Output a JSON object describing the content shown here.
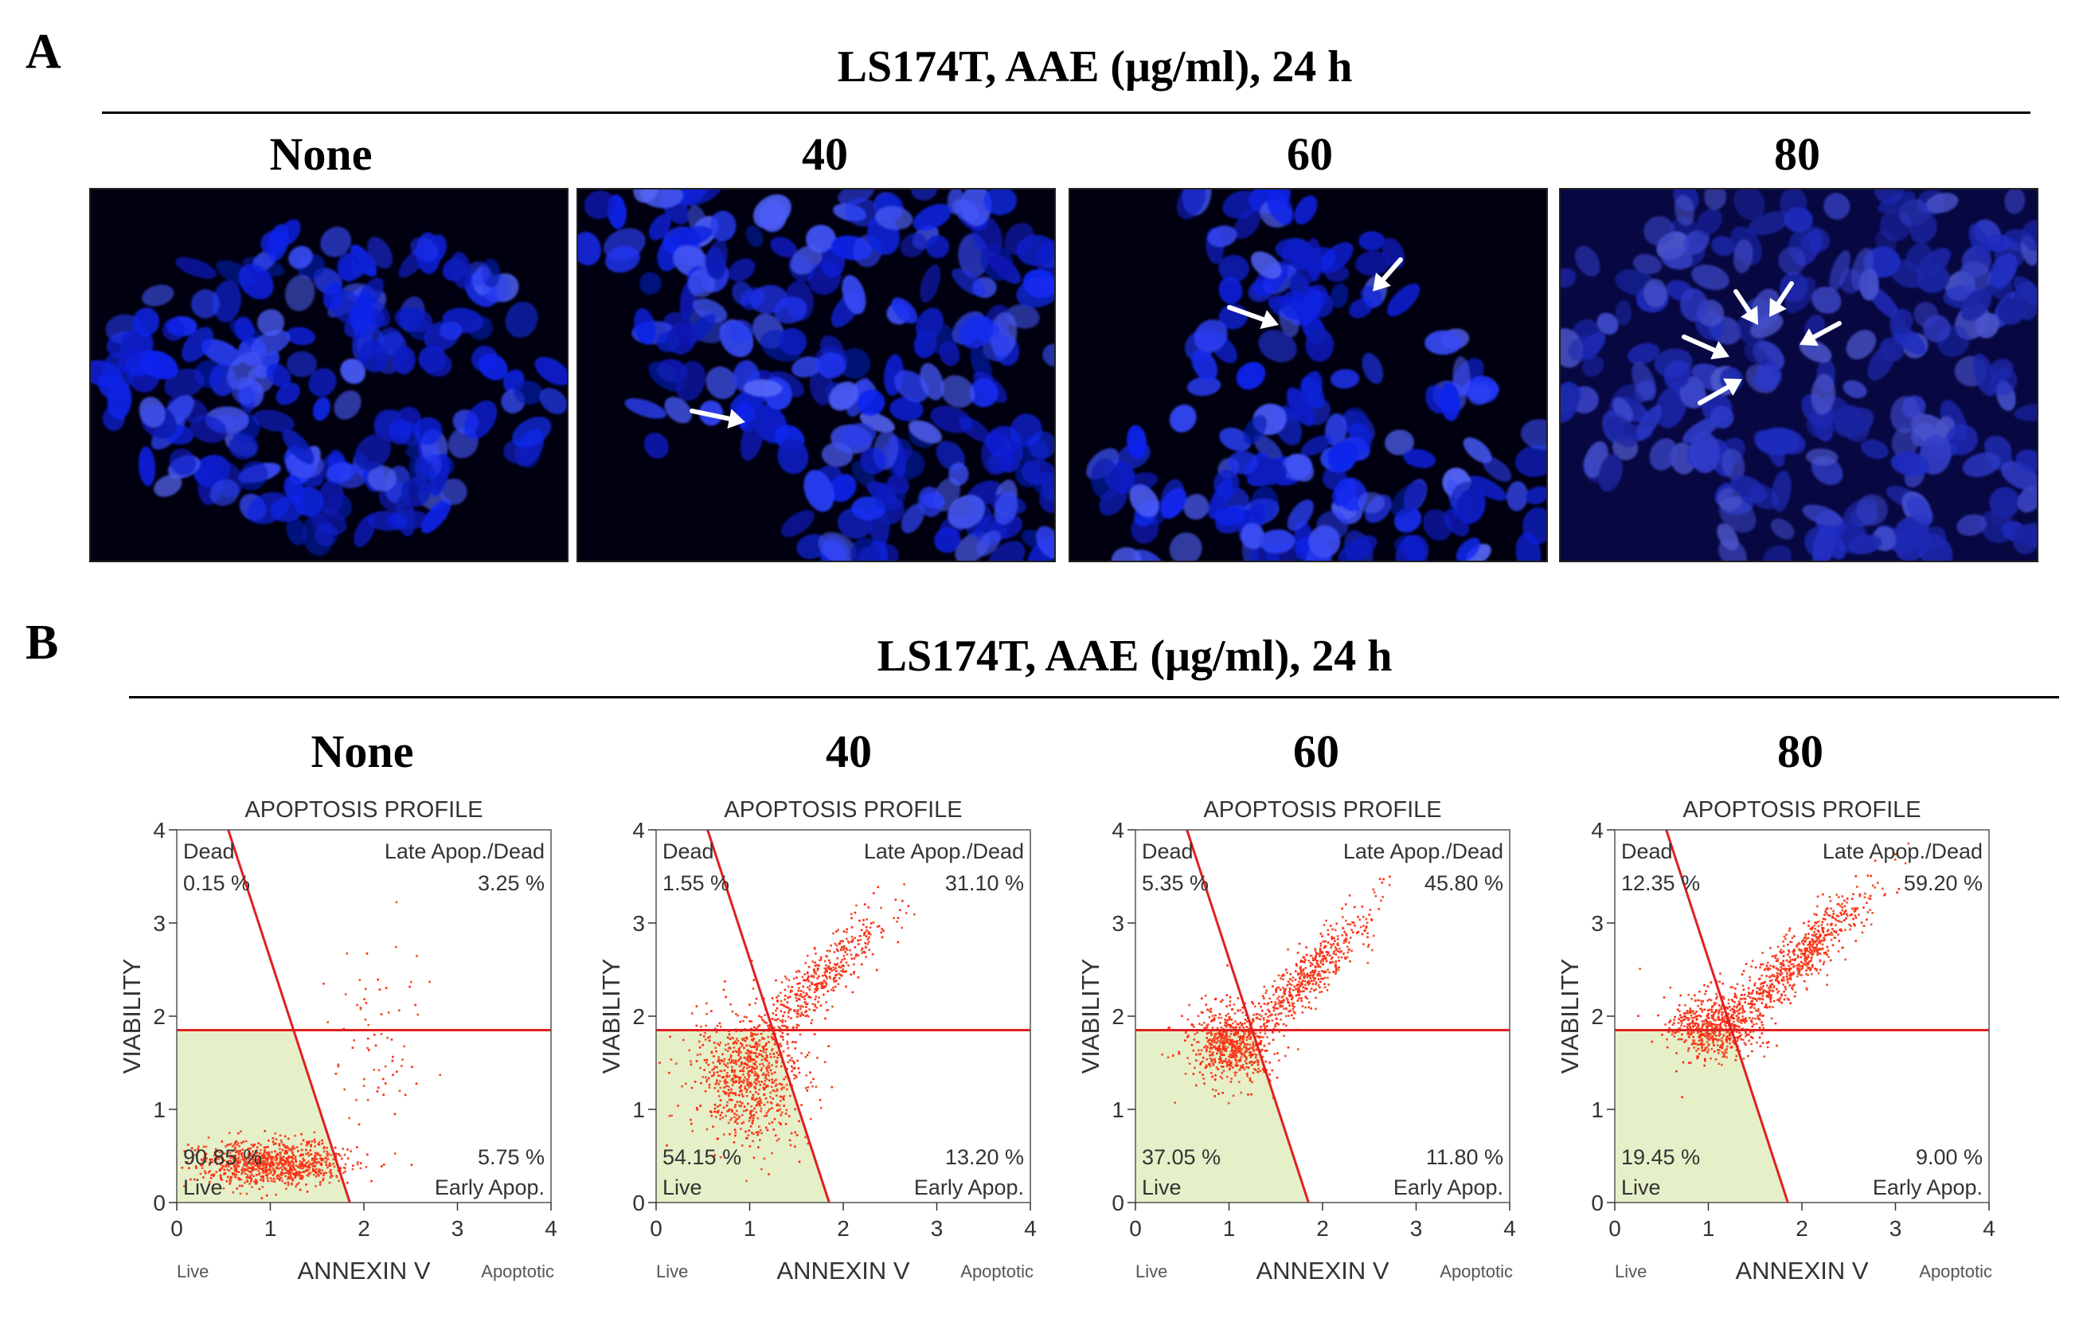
{
  "panel_a": {
    "letter": "A",
    "title": "LS174T, AAE (μg/ml), 24 h",
    "columns": [
      {
        "label": "None",
        "background": "dense",
        "arrows": 0
      },
      {
        "label": "40",
        "background": "sparse-left",
        "arrows": 1
      },
      {
        "label": "60",
        "background": "dark",
        "arrows": 2
      },
      {
        "label": "80",
        "background": "dim",
        "arrows": 5
      }
    ]
  },
  "panel_b": {
    "letter": "B",
    "title": "LS174T, AAE (μg/ml), 24 h",
    "columns": [
      "None",
      "40",
      "60",
      "80"
    ]
  },
  "chart_data": [
    {
      "type": "scatter",
      "title": "APOPTOSIS PROFILE",
      "xlabel": "ANNEXIN V",
      "ylabel": "VIABILITY",
      "x_left_note": "Live",
      "x_right_note": "Apoptotic",
      "xlim": [
        0,
        4
      ],
      "ylim": [
        0,
        4
      ],
      "xticks": [
        "0",
        "1",
        "2",
        "3",
        "4"
      ],
      "yticks": [
        "0",
        "1",
        "2",
        "3",
        "4"
      ],
      "quadrant_labels": {
        "top_left": "Dead",
        "top_right": "Late Apop./Dead",
        "bottom_left": "Live",
        "bottom_right": "Early Apop."
      },
      "percentages": {
        "dead": "0.15 %",
        "late": "3.25 %",
        "live": "90.85 %",
        "early": "5.75 %"
      },
      "clusters": [
        {
          "cx": 1.0,
          "cy": 0.42,
          "sx": 0.42,
          "sy": 0.12,
          "n": 900
        },
        {
          "cx": 2.1,
          "cy": 1.8,
          "sx": 0.3,
          "sy": 0.5,
          "n": 70
        }
      ]
    },
    {
      "type": "scatter",
      "title": "APOPTOSIS PROFILE",
      "xlabel": "ANNEXIN V",
      "ylabel": "VIABILITY",
      "x_left_note": "Live",
      "x_right_note": "Apoptotic",
      "xlim": [
        0,
        4
      ],
      "ylim": [
        0,
        4
      ],
      "xticks": [
        "0",
        "1",
        "2",
        "3",
        "4"
      ],
      "yticks": [
        "0",
        "1",
        "2",
        "3",
        "4"
      ],
      "quadrant_labels": {
        "top_left": "Dead",
        "top_right": "Late Apop./Dead",
        "bottom_left": "Live",
        "bottom_right": "Early Apop."
      },
      "percentages": {
        "dead": "1.55 %",
        "late": "31.10 %",
        "live": "54.15 %",
        "early": "13.20 %"
      },
      "clusters": [
        {
          "cx": 1.0,
          "cy": 1.35,
          "sx": 0.28,
          "sy": 0.35,
          "n": 800
        },
        {
          "cx": 1.75,
          "cy": 2.4,
          "sx": 0.35,
          "sy": 0.35,
          "n": 450
        }
      ]
    },
    {
      "type": "scatter",
      "title": "APOPTOSIS PROFILE",
      "xlabel": "ANNEXIN V",
      "ylabel": "VIABILITY",
      "x_left_note": "Live",
      "x_right_note": "Apoptotic",
      "xlim": [
        0,
        4
      ],
      "ylim": [
        0,
        4
      ],
      "xticks": [
        "0",
        "1",
        "2",
        "3",
        "4"
      ],
      "yticks": [
        "0",
        "1",
        "2",
        "3",
        "4"
      ],
      "quadrant_labels": {
        "top_left": "Dead",
        "top_right": "Late Apop./Dead",
        "bottom_left": "Live",
        "bottom_right": "Early Apop."
      },
      "percentages": {
        "dead": "5.35 %",
        "late": "45.80 %",
        "live": "37.05 %",
        "early": "11.80 %"
      },
      "clusters": [
        {
          "cx": 1.0,
          "cy": 1.7,
          "sx": 0.22,
          "sy": 0.22,
          "n": 650
        },
        {
          "cx": 1.85,
          "cy": 2.45,
          "sx": 0.32,
          "sy": 0.35,
          "n": 500
        }
      ]
    },
    {
      "type": "scatter",
      "title": "APOPTOSIS PROFILE",
      "xlabel": "ANNEXIN V",
      "ylabel": "VIABILITY",
      "x_left_note": "Live",
      "x_right_note": "Apoptotic",
      "xlim": [
        0,
        4
      ],
      "ylim": [
        0,
        4
      ],
      "xticks": [
        "0",
        "1",
        "2",
        "3",
        "4"
      ],
      "yticks": [
        "0",
        "1",
        "2",
        "3",
        "4"
      ],
      "quadrant_labels": {
        "top_left": "Dead",
        "top_right": "Late Apop./Dead",
        "bottom_left": "Live",
        "bottom_right": "Early Apop."
      },
      "percentages": {
        "dead": "12.35 %",
        "late": "59.20 %",
        "live": "19.45 %",
        "early": "9.00 %"
      },
      "clusters": [
        {
          "cx": 1.05,
          "cy": 1.9,
          "sx": 0.25,
          "sy": 0.18,
          "n": 550
        },
        {
          "cx": 1.95,
          "cy": 2.6,
          "sx": 0.4,
          "sy": 0.38,
          "n": 700
        }
      ]
    }
  ]
}
